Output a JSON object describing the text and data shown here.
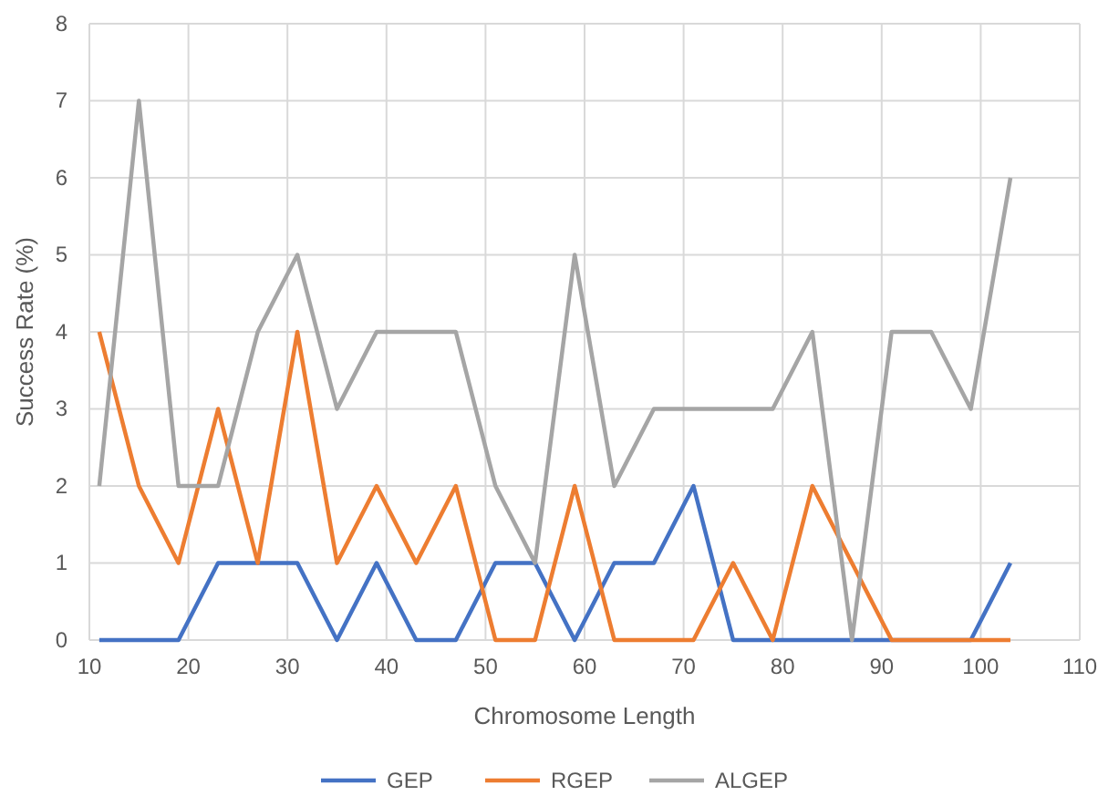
{
  "chart_data": {
    "type": "line",
    "xlabel": "Chromosome Length",
    "ylabel": "Success Rate (%)",
    "x": [
      11,
      15,
      19,
      23,
      27,
      31,
      35,
      39,
      43,
      47,
      51,
      55,
      59,
      63,
      67,
      71,
      75,
      79,
      83,
      87,
      91,
      95,
      99,
      103
    ],
    "series": [
      {
        "name": "GEP",
        "color": "#4472c4",
        "values": [
          0,
          0,
          0,
          1,
          1,
          1,
          0,
          1,
          0,
          0,
          1,
          1,
          0,
          1,
          1,
          2,
          0,
          0,
          0,
          0,
          0,
          0,
          0,
          1
        ]
      },
      {
        "name": "RGEP",
        "color": "#ed7d31",
        "values": [
          4,
          2,
          1,
          3,
          1,
          4,
          1,
          2,
          1,
          2,
          0,
          0,
          2,
          0,
          0,
          0,
          1,
          0,
          2,
          1,
          0,
          0,
          0,
          0
        ]
      },
      {
        "name": "ALGEP",
        "color": "#a5a5a5",
        "values": [
          2,
          7,
          2,
          2,
          4,
          5,
          3,
          4,
          4,
          4,
          2,
          1,
          5,
          2,
          3,
          3,
          3,
          3,
          4,
          0,
          4,
          4,
          3,
          6
        ]
      }
    ],
    "xlim": [
      10,
      110
    ],
    "xticks": [
      10,
      20,
      30,
      40,
      50,
      60,
      70,
      80,
      90,
      100,
      110
    ],
    "ylim": [
      0,
      8
    ],
    "yticks": [
      0,
      1,
      2,
      3,
      4,
      5,
      6,
      7,
      8
    ],
    "grid": true,
    "legend": "bottom",
    "marker": "none",
    "line_style": "solid"
  }
}
